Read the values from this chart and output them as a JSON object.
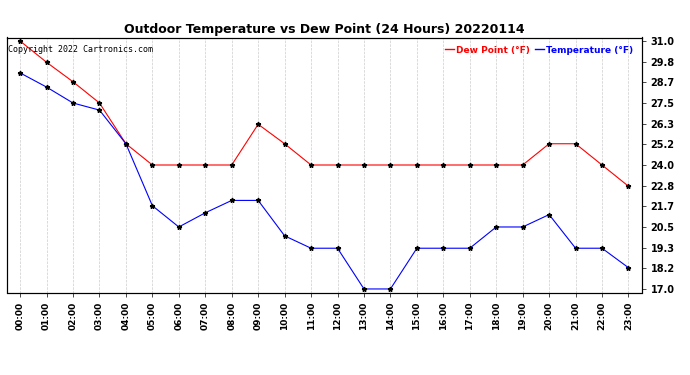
{
  "title": "Outdoor Temperature vs Dew Point (24 Hours) 20220114",
  "copyright": "Copyright 2022 Cartronics.com",
  "legend_dew": "Dew Point (°F)",
  "legend_temp": "Temperature (°F)",
  "hours": [
    "00:00",
    "01:00",
    "02:00",
    "03:00",
    "04:00",
    "05:00",
    "06:00",
    "07:00",
    "08:00",
    "09:00",
    "10:00",
    "11:00",
    "12:00",
    "13:00",
    "14:00",
    "15:00",
    "16:00",
    "17:00",
    "18:00",
    "19:00",
    "20:00",
    "21:00",
    "22:00",
    "23:00"
  ],
  "temperature": [
    29.2,
    28.4,
    27.5,
    27.1,
    25.2,
    21.7,
    20.5,
    21.3,
    22.0,
    22.0,
    20.0,
    19.3,
    19.3,
    17.0,
    17.0,
    19.3,
    19.3,
    19.3,
    20.5,
    20.5,
    21.2,
    19.3,
    19.3,
    18.2
  ],
  "dew_point": [
    31.0,
    29.8,
    28.7,
    27.5,
    25.2,
    24.0,
    24.0,
    24.0,
    24.0,
    26.3,
    25.2,
    24.0,
    24.0,
    24.0,
    24.0,
    24.0,
    24.0,
    24.0,
    24.0,
    24.0,
    25.2,
    25.2,
    24.0,
    22.8
  ],
  "temp_color": "#0000ff",
  "dew_color": "#ff0000",
  "marker_color": "#000000",
  "ylim_min": 17.0,
  "ylim_max": 31.0,
  "yticks": [
    17.0,
    18.2,
    19.3,
    20.5,
    21.7,
    22.8,
    24.0,
    25.2,
    26.3,
    27.5,
    28.7,
    29.8,
    31.0
  ],
  "background_color": "#ffffff",
  "grid_color": "#cccccc",
  "title_fontsize": 9,
  "label_fontsize": 6.5,
  "copyright_fontsize": 6,
  "legend_fontsize": 6.5,
  "ytick_fontsize": 7
}
